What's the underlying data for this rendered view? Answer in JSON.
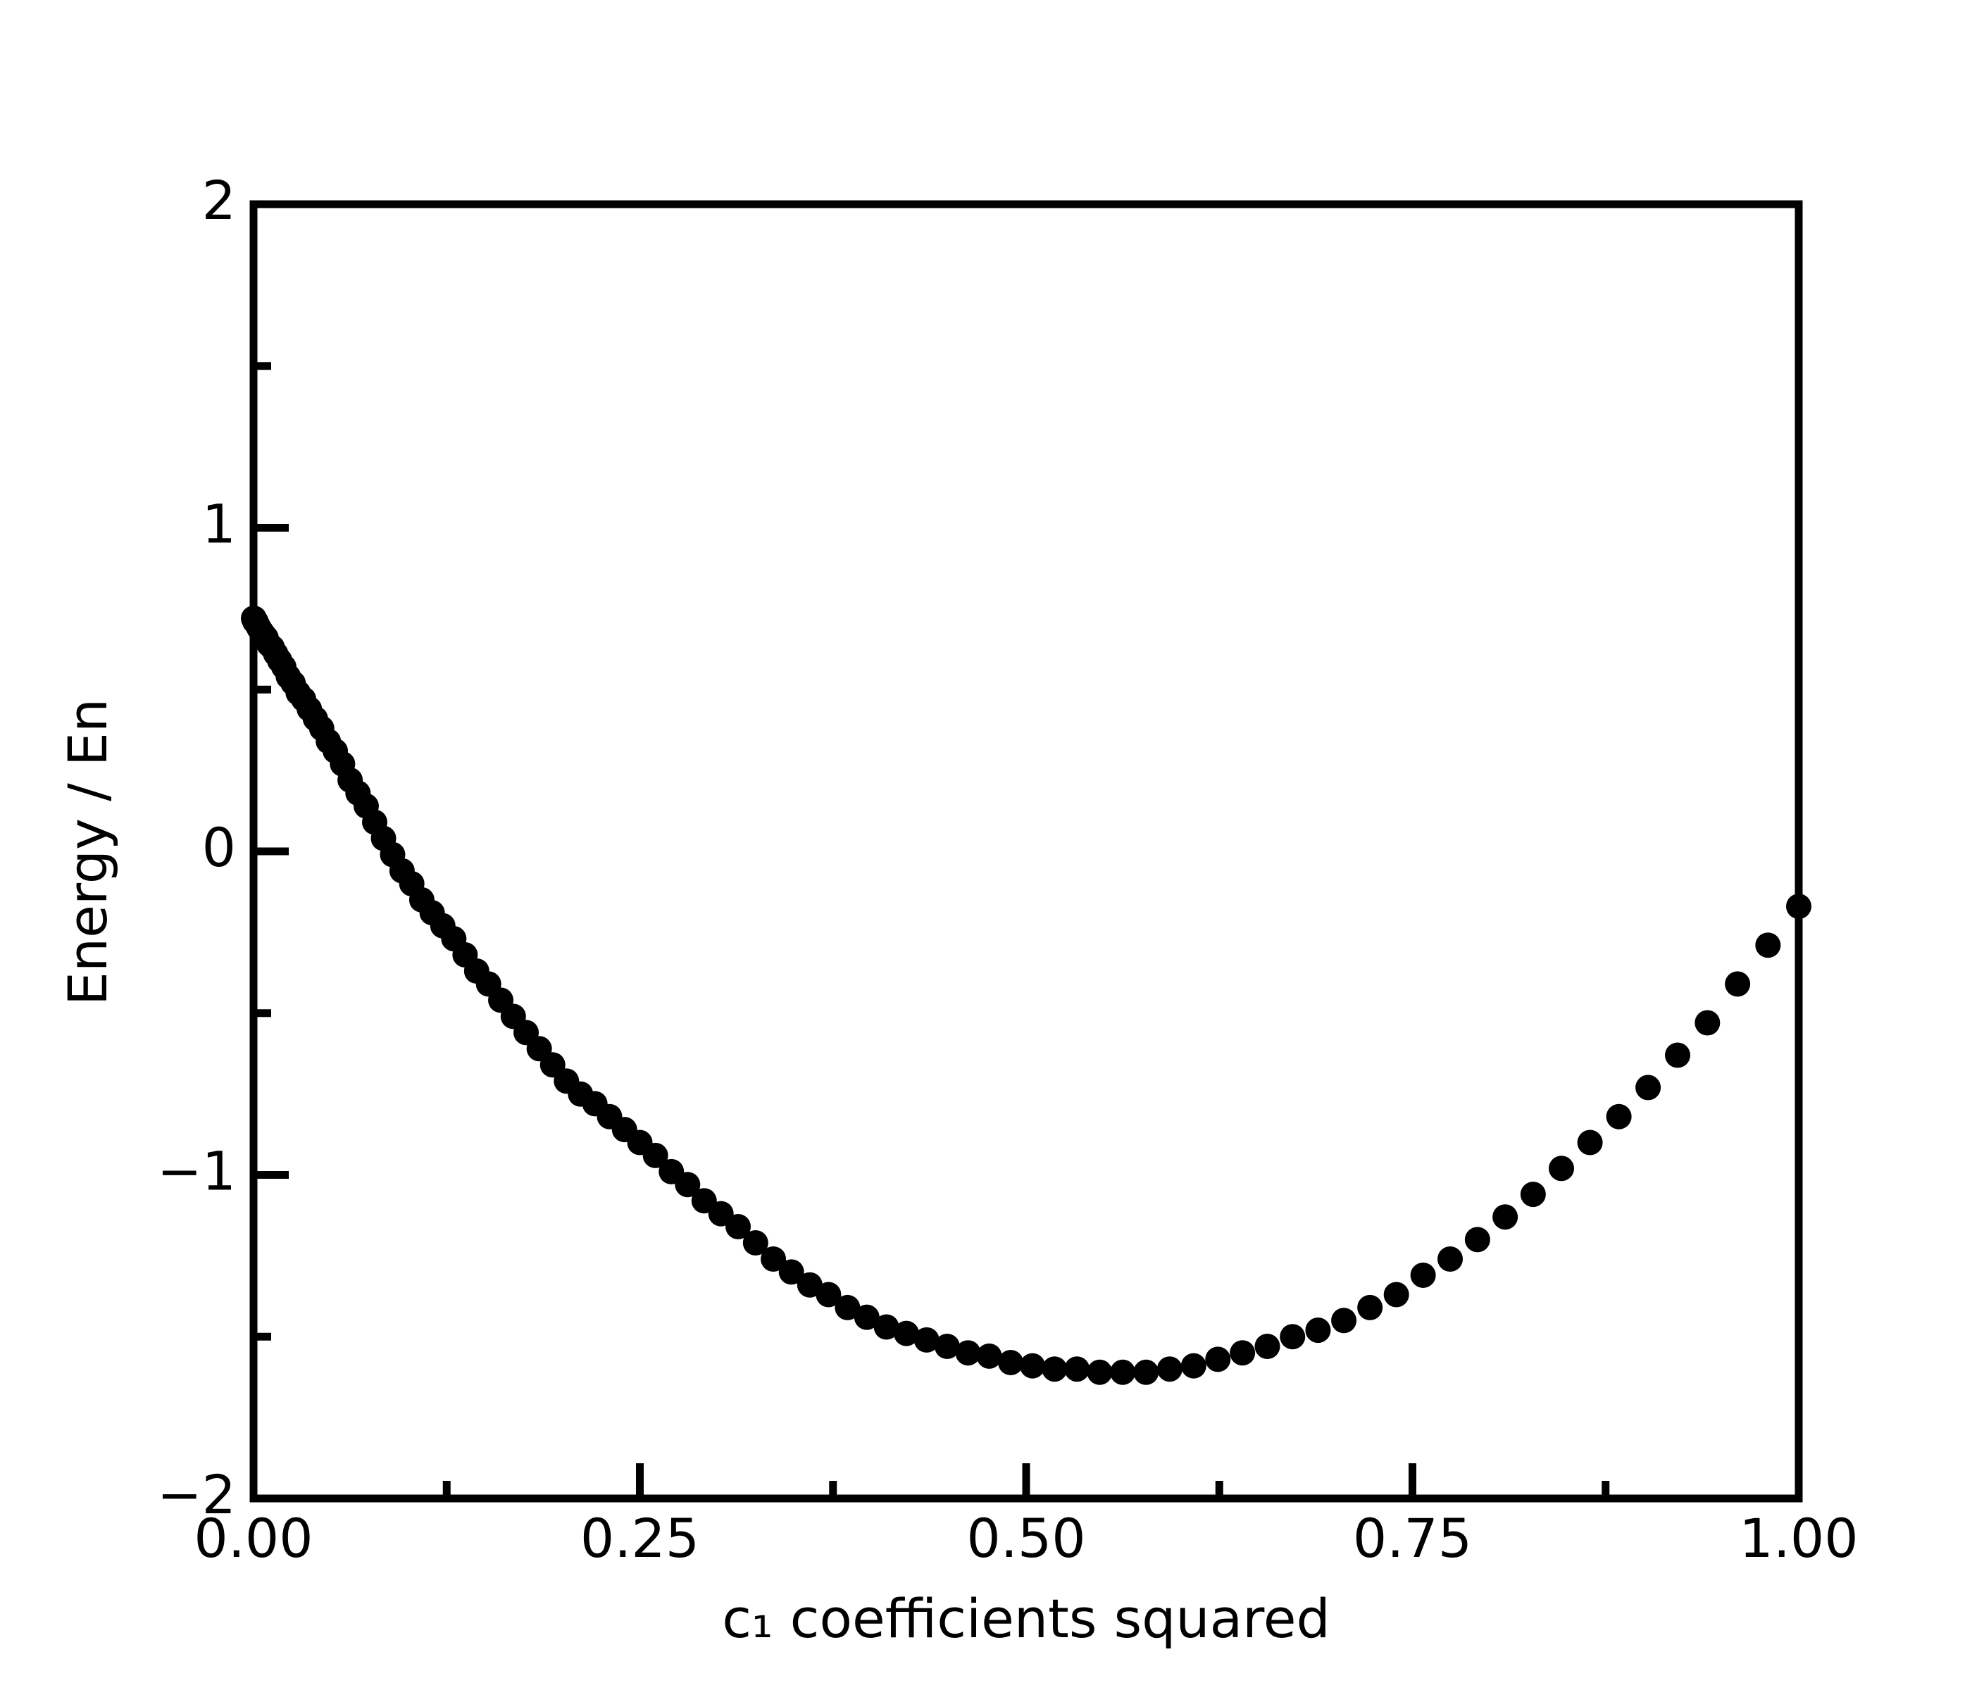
{
  "chart_data": {
    "type": "scatter",
    "xlabel": "c₁ coefficients squared",
    "ylabel": "Energy / En",
    "color": "#000000",
    "xlim": [
      0,
      1
    ],
    "ylim": [
      -2,
      2
    ],
    "xticks": [
      {
        "value": 0,
        "label": "0.00"
      },
      {
        "value": 0.25,
        "label": "0.25"
      },
      {
        "value": 0.5,
        "label": "0.50"
      },
      {
        "value": 0.75,
        "label": "0.75"
      },
      {
        "value": 1,
        "label": "1.00"
      }
    ],
    "xticks_minor": [
      0.125,
      0.375,
      0.625,
      0.875
    ],
    "yticks": [
      {
        "value": -2,
        "label": "−2"
      },
      {
        "value": -1,
        "label": "−1"
      },
      0,
      1,
      2
    ],
    "yticks_minor": [
      -1.5,
      -0.5,
      0.5,
      1.5
    ],
    "grid": false,
    "x": [
      0,
      0.0001,
      0.0004,
      0.0009,
      0.0016,
      0.0025,
      0.0036,
      0.0049,
      0.0064,
      0.0081,
      0.01,
      0.0121,
      0.0144,
      0.0169,
      0.0196,
      0.0225,
      0.0256,
      0.0289,
      0.0324,
      0.0361,
      0.04,
      0.0441,
      0.0484,
      0.0529,
      0.0576,
      0.0625,
      0.0676,
      0.0729,
      0.0784,
      0.0841,
      0.09,
      0.0961,
      0.1024,
      0.1089,
      0.1156,
      0.1225,
      0.1296,
      0.1369,
      0.1444,
      0.1521,
      0.16,
      0.1681,
      0.1764,
      0.1849,
      0.1936,
      0.2025,
      0.2116,
      0.2209,
      0.2304,
      0.2401,
      0.25,
      0.2601,
      0.2704,
      0.2809,
      0.2916,
      0.3025,
      0.3136,
      0.3249,
      0.3364,
      0.3481,
      0.36,
      0.3721,
      0.3844,
      0.3969,
      0.4096,
      0.4225,
      0.4356,
      0.4489,
      0.4624,
      0.4761,
      0.49,
      0.5041,
      0.5184,
      0.5329,
      0.5476,
      0.5625,
      0.5776,
      0.5929,
      0.6084,
      0.6241,
      0.64,
      0.6561,
      0.6724,
      0.6889,
      0.7056,
      0.7225,
      0.7396,
      0.7569,
      0.7744,
      0.7921,
      0.81,
      0.8281,
      0.8464,
      0.8649,
      0.8836,
      0.9025,
      0.9216,
      0.9409,
      0.9604,
      0.9801,
      1
    ],
    "values": [
      0.72,
      0.72,
      0.72,
      0.71,
      0.71,
      0.7,
      0.69,
      0.68,
      0.67,
      0.66,
      0.64,
      0.63,
      0.61,
      0.59,
      0.57,
      0.54,
      0.52,
      0.49,
      0.47,
      0.44,
      0.41,
      0.38,
      0.34,
      0.31,
      0.27,
      0.22,
      0.18,
      0.14,
      0.09,
      0.04,
      -0.01,
      -0.06,
      -0.1,
      -0.15,
      -0.19,
      -0.23,
      -0.27,
      -0.32,
      -0.37,
      -0.41,
      -0.46,
      -0.51,
      -0.56,
      -0.61,
      -0.66,
      -0.71,
      -0.75,
      -0.78,
      -0.82,
      -0.86,
      -0.9,
      -0.94,
      -0.99,
      -1.03,
      -1.08,
      -1.12,
      -1.16,
      -1.21,
      -1.26,
      -1.3,
      -1.34,
      -1.37,
      -1.41,
      -1.44,
      -1.47,
      -1.49,
      -1.51,
      -1.53,
      -1.55,
      -1.56,
      -1.58,
      -1.59,
      -1.6,
      -1.6,
      -1.61,
      -1.61,
      -1.61,
      -1.6,
      -1.59,
      -1.57,
      -1.55,
      -1.53,
      -1.5,
      -1.48,
      -1.45,
      -1.41,
      -1.37,
      -1.31,
      -1.26,
      -1.2,
      -1.13,
      -1.06,
      -0.98,
      -0.9,
      -0.82,
      -0.73,
      -0.63,
      -0.53,
      -0.41,
      -0.29,
      -0.17
    ]
  }
}
